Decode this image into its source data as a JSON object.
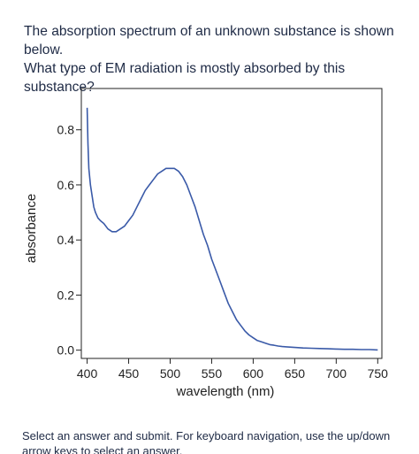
{
  "question": {
    "line1": "The absorption spectrum of an unknown substance is shown below.",
    "line2": "What type of EM radiation is mostly absorbed by this substance?"
  },
  "footer": {
    "instructions": "Select an answer and submit. For keyboard navigation, use the up/down arrow keys to select an answer."
  },
  "colors": {
    "series": "#3a5aa8",
    "axis": "#222222"
  },
  "chart_data": {
    "type": "line",
    "title": "",
    "xlabel": "wavelength (nm)",
    "ylabel": "absorbance",
    "xlim": [
      393,
      755
    ],
    "ylim": [
      -0.03,
      0.95
    ],
    "xticks": [
      400,
      450,
      500,
      550,
      600,
      650,
      700,
      750
    ],
    "yticks": [
      0.0,
      0.2,
      0.4,
      0.6,
      0.8
    ],
    "xtick_labels": [
      "400",
      "450",
      "500",
      "550",
      "600",
      "650",
      "700",
      "750"
    ],
    "ytick_labels": [
      "0.0",
      "0.2",
      "0.4",
      "0.6",
      "0.8"
    ],
    "grid": false,
    "legend": "none",
    "series": [
      {
        "x": [
          400,
          401,
          402,
          404,
          406,
          408,
          410,
          413,
          416,
          420,
          425,
          430,
          435,
          440,
          445,
          450,
          455,
          460,
          465,
          470,
          475,
          480,
          485,
          490,
          495,
          500,
          505,
          510,
          515,
          520,
          525,
          530,
          535,
          540,
          545,
          550,
          555,
          560,
          565,
          570,
          575,
          580,
          585,
          590,
          595,
          600,
          605,
          610,
          615,
          620,
          625,
          630,
          635,
          640,
          650,
          660,
          670,
          680,
          690,
          700,
          710,
          720,
          730,
          740,
          750
        ],
        "y": [
          0.88,
          0.75,
          0.66,
          0.6,
          0.56,
          0.52,
          0.5,
          0.48,
          0.47,
          0.46,
          0.44,
          0.43,
          0.43,
          0.44,
          0.45,
          0.47,
          0.49,
          0.52,
          0.55,
          0.58,
          0.6,
          0.62,
          0.64,
          0.65,
          0.66,
          0.66,
          0.66,
          0.65,
          0.63,
          0.6,
          0.56,
          0.52,
          0.47,
          0.42,
          0.38,
          0.33,
          0.29,
          0.25,
          0.21,
          0.17,
          0.14,
          0.11,
          0.09,
          0.07,
          0.055,
          0.045,
          0.035,
          0.03,
          0.025,
          0.02,
          0.018,
          0.015,
          0.013,
          0.012,
          0.01,
          0.008,
          0.007,
          0.006,
          0.005,
          0.004,
          0.003,
          0.003,
          0.002,
          0.002,
          0.001
        ]
      }
    ]
  }
}
